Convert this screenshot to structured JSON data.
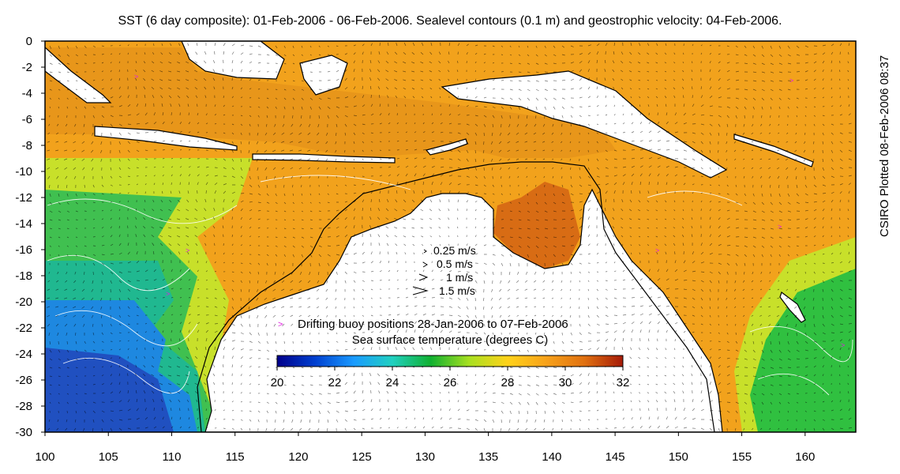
{
  "title": "SST (6 day composite): 01-Feb-2006 - 06-Feb-2006. Sealevel contours (0.1 m) and geostrophic velocity: 04-Feb-2006.",
  "credit": "CSIRO Plotted 08-Feb-2006 08:37",
  "axes": {
    "x_ticks": [
      "100",
      "105",
      "110",
      "115",
      "120",
      "125",
      "130",
      "135",
      "140",
      "145",
      "150",
      "155",
      "160"
    ],
    "y_ticks": [
      "0",
      "-2",
      "-4",
      "-6",
      "-8",
      "-10",
      "-12",
      "-14",
      "-16",
      "-18",
      "-20",
      "-22",
      "-24",
      "-26",
      "-28",
      "-30"
    ],
    "lon_range": [
      100,
      164
    ],
    "lat_range": [
      -30,
      0
    ]
  },
  "velocity_legend": [
    {
      "label": "0.25 m/s",
      "speed": 0.25
    },
    {
      "label": "0.5 m/s",
      "speed": 0.5
    },
    {
      "label": "1 m/s",
      "speed": 1
    },
    {
      "label": "1.5 m/s",
      "speed": 1.5
    }
  ],
  "buoy_legend": {
    "symbol": ">",
    "label": "Drifting buoy positions 28-Jan-2006 to 07-Feb-2006",
    "color": "#e020e0"
  },
  "colorbar": {
    "title": "Sea surface temperature (degrees C)",
    "ticks": [
      "20",
      "22",
      "24",
      "26",
      "28",
      "30",
      "32"
    ],
    "range": [
      20,
      32
    ],
    "colors": [
      "#00008b",
      "#0040d0",
      "#1a9bff",
      "#20d0c0",
      "#10b030",
      "#a8e020",
      "#ffd21a",
      "#f7a21a",
      "#e07010",
      "#a51a08"
    ]
  },
  "colors": {
    "land": "#ffffff",
    "coast": "#000000",
    "shelf": "#000000",
    "contours": "#ffffff",
    "arrows": "#000000"
  }
}
